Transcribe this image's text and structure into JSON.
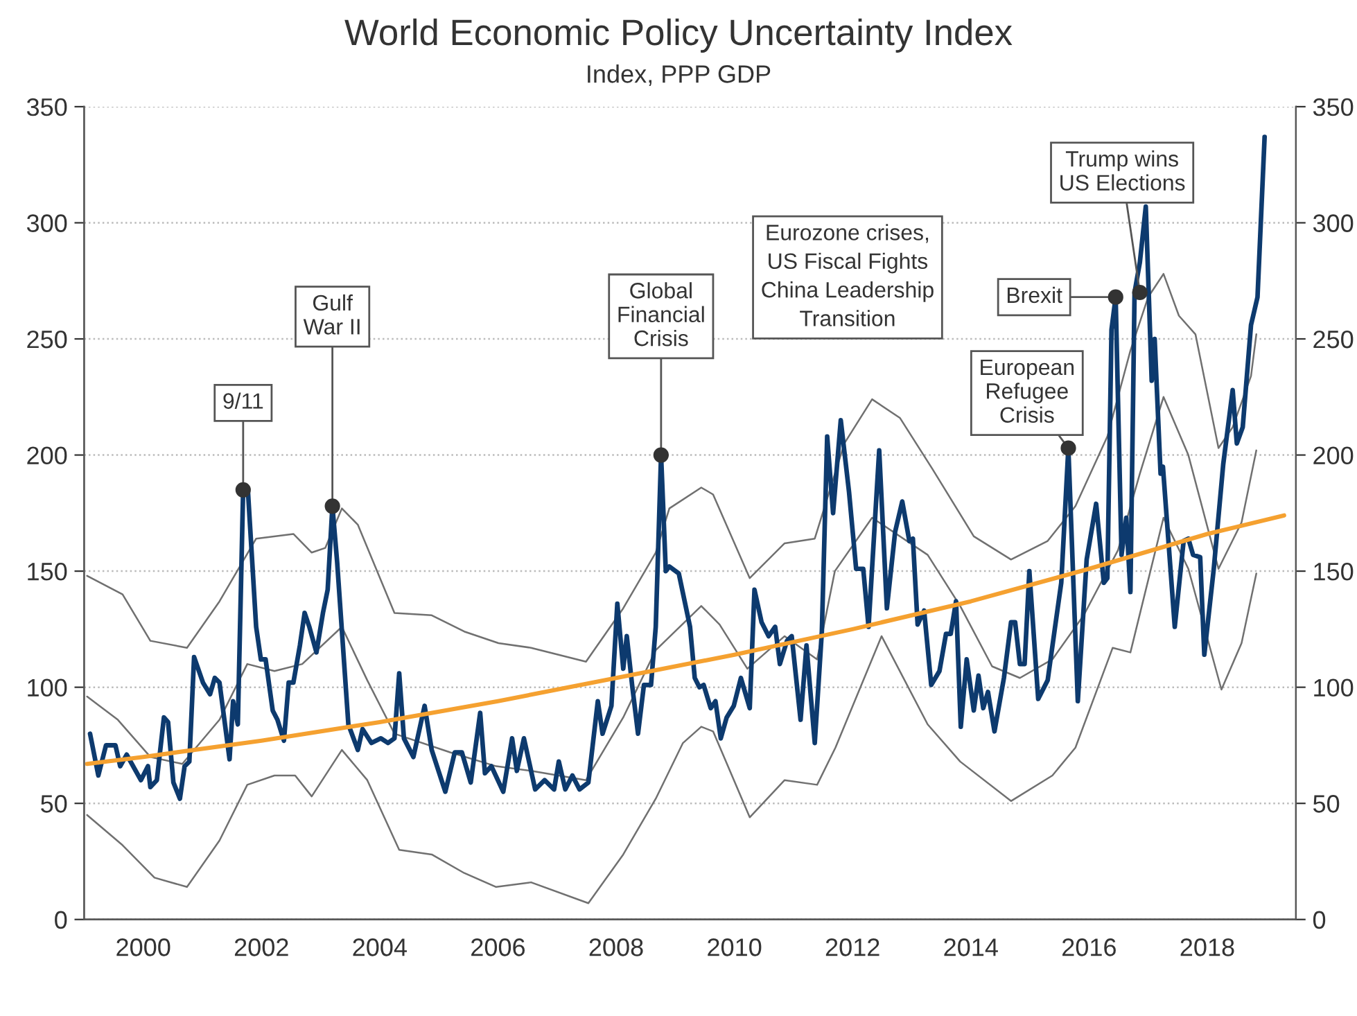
{
  "chart_data": {
    "type": "line",
    "title": "World Economic Policy Uncertainty Index",
    "subtitle": "Index, PPP GDP",
    "xlim": [
      1999.0,
      2019.5
    ],
    "xticks": [
      2000,
      2002,
      2004,
      2006,
      2008,
      2010,
      2012,
      2014,
      2016,
      2018
    ],
    "ylim": [
      0,
      350
    ],
    "yticks": [
      0,
      50,
      100,
      150,
      200,
      250,
      300,
      350
    ],
    "y2lim": [
      0,
      350
    ],
    "y2ticks": [
      0,
      50,
      100,
      150,
      200,
      250,
      300,
      350
    ],
    "grid": "y",
    "line_style": "solid",
    "marker": "none",
    "series": [
      {
        "color": "#0d3a6e",
        "x": [
          1999.1,
          1999.24,
          1999.37,
          1999.53,
          1999.61,
          1999.72,
          1999.96,
          2000.08,
          2000.12,
          2000.23,
          2000.35,
          2000.42,
          2000.51,
          2000.62,
          2000.7,
          2000.78,
          2000.86,
          2001.01,
          2001.13,
          2001.21,
          2001.29,
          2001.46,
          2001.52,
          2001.6,
          2001.69,
          2001.77,
          2001.91,
          2001.99,
          2002.07,
          2002.19,
          2002.27,
          2002.38,
          2002.46,
          2002.54,
          2002.65,
          2002.73,
          2002.81,
          2002.93,
          2003.04,
          2003.12,
          2003.2,
          2003.28,
          2003.47,
          2003.63,
          2003.71,
          2003.86,
          2004.02,
          2004.14,
          2004.25,
          2004.33,
          2004.41,
          2004.57,
          2004.76,
          2004.88,
          2005.11,
          2005.27,
          2005.39,
          2005.54,
          2005.7,
          2005.78,
          2005.89,
          2006.09,
          2006.24,
          2006.32,
          2006.44,
          2006.63,
          2006.79,
          2006.95,
          2007.03,
          2007.14,
          2007.26,
          2007.38,
          2007.53,
          2007.69,
          2007.77,
          2007.92,
          2008.02,
          2008.12,
          2008.18,
          2008.27,
          2008.37,
          2008.47,
          2008.59,
          2008.67,
          2008.76,
          2008.84,
          2008.9,
          2009.06,
          2009.25,
          2009.33,
          2009.41,
          2009.48,
          2009.6,
          2009.68,
          2009.77,
          2009.87,
          2009.99,
          2010.11,
          2010.26,
          2010.34,
          2010.46,
          2010.58,
          2010.69,
          2010.77,
          2010.89,
          2010.97,
          2011.12,
          2011.22,
          2011.36,
          2011.48,
          2011.57,
          2011.67,
          2011.8,
          2011.94,
          2012.06,
          2012.18,
          2012.27,
          2012.45,
          2012.58,
          2012.72,
          2012.84,
          2012.96,
          2013.02,
          2013.1,
          2013.21,
          2013.33,
          2013.47,
          2013.58,
          2013.66,
          2013.75,
          2013.83,
          2013.93,
          2014.05,
          2014.13,
          2014.21,
          2014.29,
          2014.4,
          2014.56,
          2014.68,
          2014.75,
          2014.83,
          2014.91,
          2014.99,
          2015.14,
          2015.3,
          2015.42,
          2015.53,
          2015.65,
          2015.81,
          2015.96,
          2016.12,
          2016.25,
          2016.31,
          2016.38,
          2016.45,
          2016.55,
          2016.63,
          2016.7,
          2016.77,
          2016.86,
          2016.96,
          2017.06,
          2017.11,
          2017.21,
          2017.25,
          2017.45,
          2017.6,
          2017.68,
          2017.76,
          2017.88,
          2017.95,
          2018.11,
          2018.27,
          2018.43,
          2018.5,
          2018.6,
          2018.74,
          2018.85,
          2018.97
        ],
        "values": [
          80,
          62,
          75,
          75,
          66,
          71,
          60,
          66,
          57,
          60,
          87,
          85,
          59,
          52,
          66,
          68,
          113,
          102,
          97,
          104,
          102,
          69,
          94,
          84,
          185,
          185,
          126,
          112,
          112,
          90,
          86,
          77,
          102,
          102,
          118,
          132,
          126,
          115,
          132,
          142,
          178,
          154,
          84,
          73,
          82,
          76,
          78,
          76,
          78,
          106,
          78,
          70,
          92,
          73,
          55,
          72,
          72,
          59,
          89,
          63,
          66,
          55,
          78,
          64,
          78,
          56,
          60,
          56,
          68,
          56,
          62,
          56,
          59,
          94,
          80,
          92,
          136,
          108,
          122,
          101,
          80,
          101,
          101,
          126,
          200,
          150,
          152,
          149,
          126,
          104,
          100,
          101,
          91,
          94,
          78,
          87,
          92,
          104,
          91,
          142,
          128,
          122,
          126,
          110,
          120,
          122,
          86,
          118,
          76,
          124,
          208,
          175,
          215,
          184,
          151,
          151,
          126,
          202,
          134,
          167,
          180,
          163,
          164,
          127,
          133,
          101,
          107,
          123,
          123,
          137,
          83,
          112,
          90,
          105,
          91,
          98,
          81,
          104,
          128,
          128,
          110,
          110,
          150,
          95,
          103,
          125,
          145,
          203,
          94,
          155,
          179,
          145,
          147,
          254,
          268,
          157,
          173,
          141,
          270,
          283,
          307,
          232,
          250,
          192,
          195,
          126,
          163,
          164,
          157,
          156,
          114,
          151,
          196,
          228,
          205,
          212,
          256,
          268,
          337
        ]
      },
      {
        "color": "#f5a130",
        "x": [
          1999.05,
          2000,
          2002,
          2004,
          2006,
          2008,
          2010,
          2012,
          2014,
          2016,
          2018,
          2019.3
        ],
        "values": [
          67,
          70,
          77,
          85,
          94,
          104,
          114,
          125,
          137,
          151,
          166,
          174
        ]
      },
      {
        "color": "#707070",
        "x": [
          1999.05,
          1999.65,
          2000.12,
          2000.74,
          2001.29,
          2001.91,
          2002.54,
          2002.85,
          2003.08,
          2003.36,
          2003.63,
          2004.25,
          2004.88,
          2005.43,
          2006.01,
          2006.56,
          2007.49,
          2008.12,
          2008.67,
          2008.9,
          2009.44,
          2009.64,
          2010.26,
          2010.85,
          2011.36,
          2011.86,
          2012.33,
          2012.8,
          2013.35,
          2014.05,
          2014.68,
          2015.3,
          2015.77,
          2016.31,
          2016.7,
          2017.0,
          2017.26,
          2017.52,
          2017.8,
          2018.19,
          2018.43,
          2018.74,
          2018.83
        ],
        "values": [
          148,
          140,
          120,
          117,
          137,
          164,
          166,
          158,
          160,
          177,
          170,
          132,
          131,
          124,
          119,
          117,
          111,
          134,
          158,
          177,
          186,
          183,
          147,
          162,
          164,
          205,
          224,
          216,
          194,
          165,
          155,
          163,
          178,
          208,
          245,
          268,
          278,
          260,
          252,
          203,
          212,
          234,
          252
        ]
      },
      {
        "color": "#707070",
        "x": [
          1999.05,
          1999.57,
          2000.12,
          2000.66,
          2001.29,
          2001.76,
          2002.22,
          2002.69,
          2003.36,
          2003.79,
          2004.25,
          2005.19,
          2005.97,
          2006.56,
          2007.49,
          2008.12,
          2008.67,
          2009.44,
          2009.75,
          2010.22,
          2010.85,
          2011.4,
          2011.7,
          2012.33,
          2013.27,
          2013.82,
          2014.36,
          2014.83,
          2015.38,
          2015.91,
          2016.49,
          2016.86,
          2017.26,
          2017.68,
          2018.19,
          2018.58,
          2018.83
        ],
        "values": [
          96,
          86,
          70,
          67,
          86,
          110,
          107,
          110,
          126,
          103,
          80,
          72,
          66,
          64,
          60,
          87,
          116,
          135,
          127,
          108,
          122,
          112,
          150,
          173,
          157,
          135,
          109,
          104,
          112,
          131,
          159,
          192,
          225,
          200,
          151,
          171,
          202
        ]
      },
      {
        "color": "#707070",
        "x": [
          1999.05,
          1999.65,
          2000.19,
          2000.74,
          2001.29,
          2001.76,
          2002.22,
          2002.57,
          2002.85,
          2003.36,
          2003.79,
          2004.33,
          2004.88,
          2005.43,
          2005.97,
          2006.56,
          2007.53,
          2008.12,
          2008.67,
          2009.13,
          2009.44,
          2009.64,
          2010.26,
          2010.85,
          2011.4,
          2011.71,
          2012.49,
          2013.27,
          2013.82,
          2014.68,
          2015.38,
          2015.77,
          2016.4,
          2016.7,
          2017.26,
          2017.68,
          2018.24,
          2018.58,
          2018.83
        ],
        "values": [
          45,
          32,
          18,
          14,
          34,
          58,
          62,
          62,
          53,
          73,
          60,
          30,
          28,
          20,
          14,
          16,
          7,
          28,
          52,
          76,
          83,
          81,
          44,
          60,
          58,
          74,
          122,
          84,
          68,
          51,
          62,
          74,
          117,
          115,
          173,
          151,
          99,
          119,
          149
        ]
      }
    ],
    "annotations": [
      {
        "text": "9/11",
        "x": 2001.69,
        "y": 185
      },
      {
        "text": "Gulf\nWar II",
        "x": 2003.2,
        "y": 178
      },
      {
        "text": "Global\nFinancial\nCrisis",
        "x": 2008.76,
        "y": 200
      },
      "Eurozone crises,\nUS Fiscal Fights\nChina Leadership\nTransition",
      {
        "text": "European\nRefugee\nCrisis",
        "x": 2015.65,
        "y": 203
      },
      {
        "text": "Brexit",
        "x": 2016.45,
        "y": 268
      },
      {
        "text": "Trump wins\nUS Elections",
        "x": 2016.86,
        "y": 270
      }
    ]
  }
}
